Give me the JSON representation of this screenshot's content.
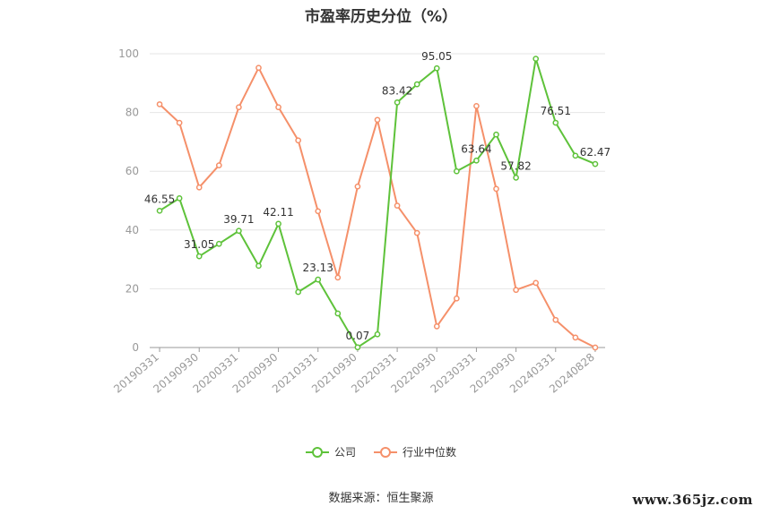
{
  "chart_data": {
    "type": "line",
    "title": "市盈率历史分位（%）",
    "x_tick_labels": [
      "20190331",
      "20190930",
      "20200331",
      "20200930",
      "20210331",
      "20210930",
      "20220331",
      "20220930",
      "20230331",
      "20230930",
      "20240331",
      "20240828"
    ],
    "x_tick_positions": [
      0,
      2,
      4,
      6,
      8,
      10,
      12,
      14,
      16,
      18,
      20,
      22
    ],
    "ylim": [
      0,
      100
    ],
    "yticks": [
      0,
      20,
      40,
      60,
      80,
      100
    ],
    "grid": true,
    "legend_placement": "bottom-center",
    "series": [
      {
        "name": "公司",
        "color": "#5ec23a",
        "values": [
          46.55,
          50.8,
          31.05,
          35.3,
          39.71,
          27.8,
          42.11,
          18.9,
          23.13,
          11.6,
          0.07,
          4.5,
          83.42,
          89.6,
          95.05,
          60.0,
          63.64,
          72.5,
          57.82,
          98.3,
          76.51,
          65.3,
          62.47
        ],
        "labels": {
          "0": "46.55",
          "2": "31.05",
          "4": "39.71",
          "6": "42.11",
          "8": "23.13",
          "10": "0.07",
          "12": "83.42",
          "14": "95.05",
          "16": "63.64",
          "18": "57.82",
          "20": "76.51",
          "22": "62.47"
        }
      },
      {
        "name": "行业中位数",
        "color": "#f5906a",
        "values": [
          82.8,
          76.5,
          54.5,
          62.0,
          81.8,
          95.2,
          81.8,
          70.5,
          46.4,
          23.8,
          54.8,
          77.5,
          48.3,
          39.0,
          7.2,
          16.7,
          82.2,
          54.0,
          19.6,
          22.0,
          9.4,
          3.4,
          0.0
        ]
      }
    ]
  },
  "legend": [
    {
      "label": "公司",
      "color": "#5ec23a"
    },
    {
      "label": "行业中位数",
      "color": "#f5906a"
    }
  ],
  "source": "数据来源：恒生聚源",
  "watermark": "www.365jz.com"
}
